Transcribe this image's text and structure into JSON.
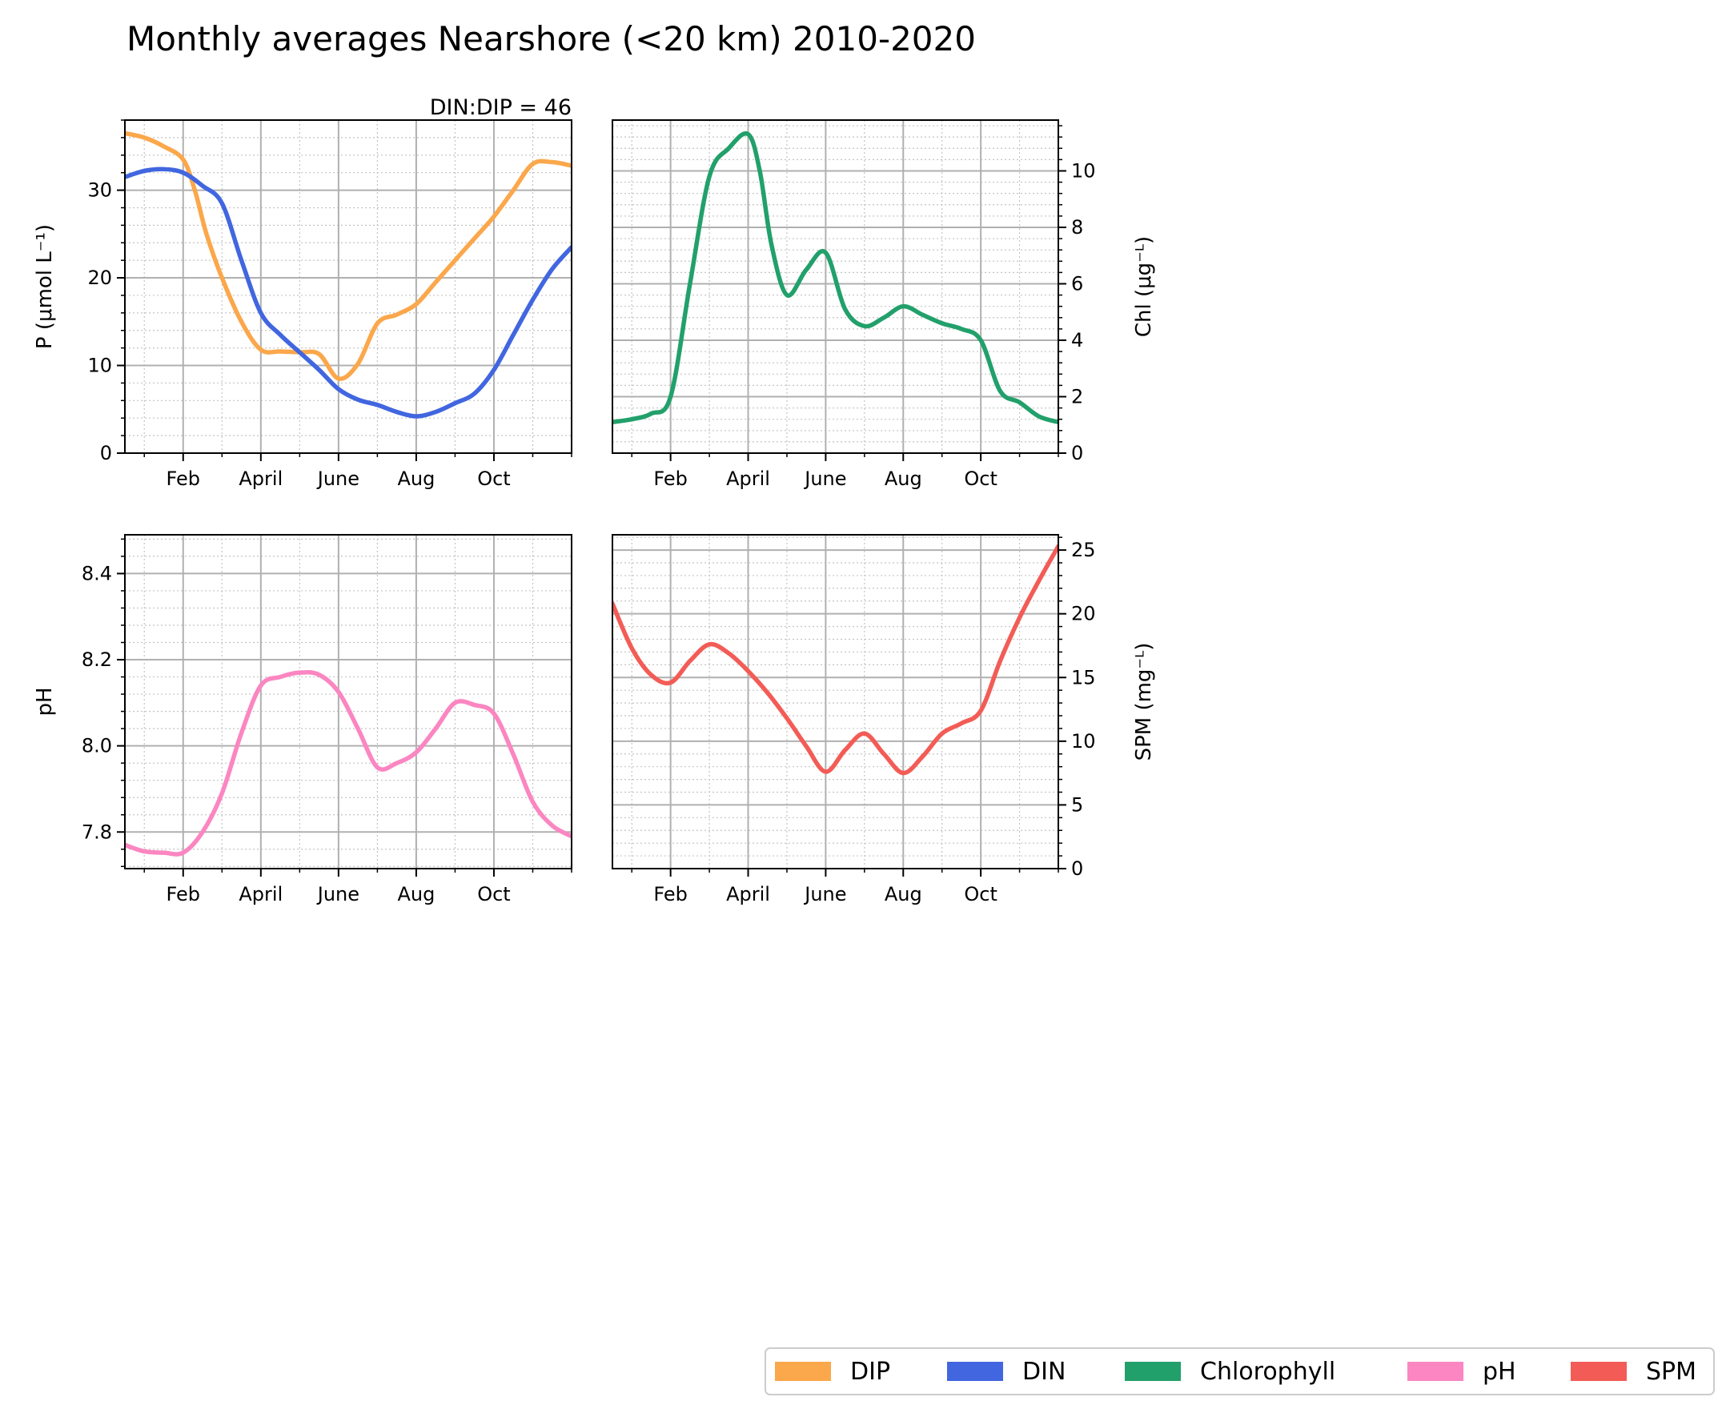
{
  "figure": {
    "title": "Monthly averages Nearshore (<20 km) 2010-2020",
    "annotation": "DIN:DIP = 46"
  },
  "legend": {
    "placement": "bottom-right",
    "entries": [
      {
        "label": "DIP",
        "color": "#FBA74B"
      },
      {
        "label": "DIN",
        "color": "#4166E0"
      },
      {
        "label": "Chlorophyll",
        "color": "#22A06B"
      },
      {
        "label": "pH",
        "color": "#FB86C1"
      },
      {
        "label": "SPM",
        "color": "#F35C56"
      }
    ]
  },
  "chart_data": [
    {
      "type": "line",
      "ylabel": "P (μmol L⁻¹)",
      "ylabel_side": "left",
      "xlim": [
        0.5,
        12
      ],
      "ylim": [
        0,
        38
      ],
      "yticks": [
        0,
        10,
        20,
        30
      ],
      "ytick_labels": [
        "0",
        "10",
        "20",
        "30"
      ],
      "xticks": [
        2,
        4,
        6,
        8,
        10
      ],
      "xtick_labels": [
        "Feb",
        "April",
        "June",
        "Aug",
        "Oct"
      ],
      "grid": true,
      "series": [
        {
          "name": "DIP",
          "color": "#FBA74B",
          "x": [
            0.5,
            1,
            1.5,
            2,
            2.3,
            2.6,
            3,
            3.5,
            4,
            4.5,
            5,
            5.5,
            6,
            6.5,
            7,
            7.5,
            8,
            8.5,
            9,
            9.5,
            10,
            10.5,
            11,
            11.5,
            12
          ],
          "y": [
            36.5,
            36,
            35,
            33.5,
            30,
            25,
            20,
            15,
            11.8,
            11.6,
            11.5,
            11.3,
            8.5,
            10.2,
            14.8,
            15.8,
            17,
            19.5,
            22,
            24.5,
            27,
            30,
            33,
            33.2,
            32.8
          ]
        },
        {
          "name": "DIN",
          "color": "#4166E0",
          "x": [
            0.5,
            1,
            1.5,
            2,
            2.5,
            3,
            3.5,
            4,
            4.5,
            5,
            5.5,
            6,
            6.5,
            7,
            7.5,
            8,
            8.5,
            9,
            9.5,
            10,
            10.5,
            11,
            11.5,
            12
          ],
          "y": [
            31.5,
            32.2,
            32.4,
            32,
            30.5,
            28.5,
            22,
            16,
            13.5,
            11.5,
            9.5,
            7.3,
            6.1,
            5.5,
            4.7,
            4.2,
            4.7,
            5.7,
            6.8,
            9.5,
            13.5,
            17.5,
            21,
            23.5
          ]
        }
      ]
    },
    {
      "type": "line",
      "ylabel": "Chl (μg⁻ᴸ)",
      "ylabel_side": "right",
      "xlim": [
        0.5,
        12
      ],
      "ylim": [
        0,
        11.8
      ],
      "yticks": [
        0,
        2,
        4,
        6,
        8,
        10
      ],
      "ytick_labels": [
        "0",
        "2",
        "4",
        "6",
        "8",
        "10"
      ],
      "xticks": [
        2,
        4,
        6,
        8,
        10
      ],
      "xtick_labels": [
        "Feb",
        "April",
        "June",
        "Aug",
        "Oct"
      ],
      "grid": true,
      "series": [
        {
          "name": "Chlorophyll",
          "color": "#22A06B",
          "x": [
            0.5,
            1,
            1.5,
            2,
            2.5,
            3,
            3.5,
            4,
            4.3,
            4.6,
            5,
            5.5,
            6,
            6.5,
            7,
            7.5,
            8,
            8.5,
            9,
            9.5,
            10,
            10.5,
            11,
            11.5,
            12
          ],
          "y": [
            1.1,
            1.2,
            1.4,
            2,
            6,
            9.8,
            10.8,
            11.3,
            10,
            7.4,
            5.6,
            6.5,
            7.1,
            5.1,
            4.5,
            4.8,
            5.2,
            4.9,
            4.6,
            4.4,
            4,
            2.2,
            1.8,
            1.3,
            1.1
          ]
        }
      ]
    },
    {
      "type": "line",
      "ylabel": "pH",
      "ylabel_side": "left",
      "xlim": [
        0.5,
        12
      ],
      "ylim": [
        7.715,
        8.49
      ],
      "yticks": [
        7.8,
        8.0,
        8.2,
        8.4
      ],
      "ytick_labels": [
        "7.8",
        "8.0",
        "8.2",
        "8.4"
      ],
      "xticks": [
        2,
        4,
        6,
        8,
        10
      ],
      "xtick_labels": [
        "Feb",
        "April",
        "June",
        "Aug",
        "Oct"
      ],
      "grid": true,
      "series": [
        {
          "name": "pH",
          "color": "#FB86C1",
          "x": [
            0.5,
            1,
            1.5,
            2,
            2.5,
            3,
            3.5,
            4,
            4.5,
            5,
            5.5,
            6,
            6.5,
            7,
            7.5,
            8,
            8.5,
            9,
            9.5,
            10,
            10.5,
            11,
            11.5,
            12
          ],
          "y": [
            7.77,
            7.755,
            7.752,
            7.752,
            7.8,
            7.89,
            8.03,
            8.14,
            8.16,
            8.17,
            8.165,
            8.125,
            8.04,
            7.95,
            7.96,
            7.985,
            8.04,
            8.1,
            8.095,
            8.075,
            7.98,
            7.87,
            7.815,
            7.79
          ]
        }
      ]
    },
    {
      "type": "line",
      "ylabel": "SPM (mg⁻ᴸ)",
      "ylabel_side": "right",
      "xlim": [
        0.5,
        12
      ],
      "ylim": [
        0,
        26.2
      ],
      "yticks": [
        0,
        5,
        10,
        15,
        20,
        25
      ],
      "ytick_labels": [
        "0",
        "5",
        "10",
        "15",
        "20",
        "25"
      ],
      "xticks": [
        2,
        4,
        6,
        8,
        10
      ],
      "xtick_labels": [
        "Feb",
        "April",
        "June",
        "Aug",
        "Oct"
      ],
      "grid": true,
      "series": [
        {
          "name": "SPM",
          "color": "#F35C56",
          "x": [
            0.5,
            1,
            1.5,
            2,
            2.5,
            3,
            3.5,
            4,
            4.5,
            5,
            5.5,
            6,
            6.5,
            7,
            7.5,
            8,
            8.5,
            9,
            9.5,
            10,
            10.5,
            11,
            11.5,
            12
          ],
          "y": [
            20.8,
            17.3,
            15.2,
            14.6,
            16.3,
            17.6,
            16.9,
            15.5,
            13.8,
            11.8,
            9.6,
            7.6,
            9.3,
            10.6,
            9.0,
            7.5,
            8.8,
            10.6,
            11.4,
            12.4,
            16.3,
            19.7,
            22.6,
            25.3
          ]
        }
      ]
    }
  ]
}
